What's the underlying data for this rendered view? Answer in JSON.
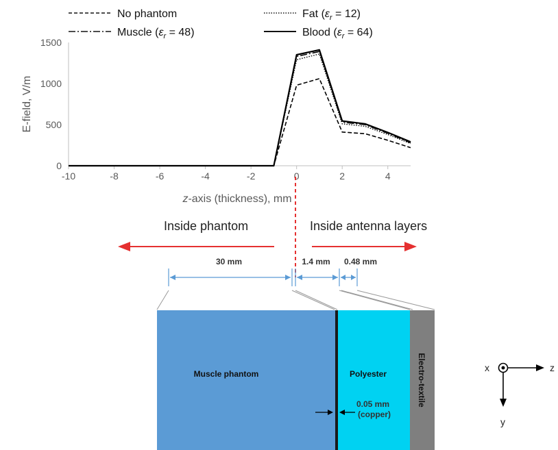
{
  "chart_data": {
    "type": "line",
    "xlabel": "z-axis (thickness), mm",
    "xlabel_italic_part": "z",
    "xlabel_rest": "-axis (thickness), mm",
    "ylabel": "E-field, V/m",
    "xlim": [
      -10,
      5
    ],
    "ylim": [
      0,
      1500
    ],
    "xticks": [
      -10,
      -8,
      -6,
      -4,
      -2,
      0,
      2,
      4
    ],
    "yticks": [
      0,
      500,
      1000,
      1500
    ],
    "grid": false,
    "legend_position": "top",
    "x": [
      -10,
      -1,
      0,
      1,
      2,
      3,
      4,
      5
    ],
    "series": [
      {
        "name": "No phantom",
        "style": "dashed",
        "values": [
          0,
          0,
          980,
          1060,
          410,
          390,
          310,
          220
        ]
      },
      {
        "name": "Fat (εr = 12)",
        "label_main": "Fat (",
        "label_sym": "ε",
        "label_sub": "r",
        "label_end": " = 12)",
        "style": "dotted",
        "values": [
          0,
          0,
          1290,
          1360,
          510,
          480,
          380,
          270
        ]
      },
      {
        "name": "Muscle (εr = 48)",
        "label_main": "Muscle (",
        "label_sym": "ε",
        "label_sub": "r",
        "label_end": " = 48)",
        "style": "dashdot",
        "values": [
          0,
          0,
          1330,
          1390,
          530,
          500,
          395,
          280
        ]
      },
      {
        "name": "Blood (εr = 64)",
        "label_main": "Blood (",
        "label_sym": "ε",
        "label_sub": "r",
        "label_end": " = 64)",
        "style": "solid",
        "values": [
          0,
          0,
          1350,
          1410,
          545,
          510,
          405,
          290
        ]
      }
    ]
  },
  "diagram": {
    "left_label": "Inside phantom",
    "right_label": "Inside antenna layers",
    "dims": {
      "phantom": "30 mm",
      "polyester": "1.4 mm",
      "textile": "0.48 mm"
    },
    "layers": {
      "muscle": "Muscle phantom",
      "polyester": "Polyester",
      "textile": "Electro-textile"
    },
    "copper": {
      "thickness": "0.05 mm",
      "material": "(copper)"
    },
    "coords": {
      "x": "x",
      "y": "y",
      "z": "z"
    },
    "colors": {
      "muscle": "#5b9bd5",
      "polyester": "#00d2f2",
      "textile": "#7f7f7f",
      "arrow": "#e53030",
      "dim": "#5b9bd5"
    }
  }
}
